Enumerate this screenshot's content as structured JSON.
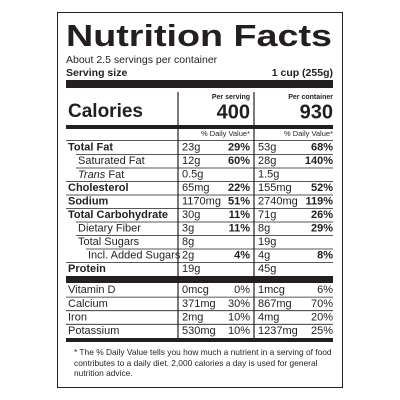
{
  "header": {
    "title": "Nutrition Facts",
    "servings": "About 2.5 servings per container",
    "serving_size_label": "Serving size",
    "serving_size": "1 cup (255g)"
  },
  "calories": {
    "label": "Calories",
    "per_serving_label": "Per serving",
    "per_serving": "400",
    "per_container_label": "Per container",
    "per_container": "930"
  },
  "dv_header": "% Daily Value*",
  "nutrients": [
    {
      "name": "Total Fat",
      "bold": true,
      "indent": 0,
      "serving": {
        "amount": "23g",
        "dv": "29%"
      },
      "container": {
        "amount": "53g",
        "dv": "68%"
      }
    },
    {
      "name": "Saturated Fat",
      "bold": false,
      "indent": 1,
      "serving": {
        "amount": "12g",
        "dv": "60%"
      },
      "container": {
        "amount": "28g",
        "dv": "140%"
      }
    },
    {
      "name_italic": "Trans",
      "name": "Fat",
      "bold": false,
      "indent": 1,
      "serving": {
        "amount": "0.5g"
      },
      "container": {
        "amount": "1.5g"
      }
    },
    {
      "name": "Cholesterol",
      "bold": true,
      "indent": 0,
      "serving": {
        "amount": "65mg",
        "dv": "22%"
      },
      "container": {
        "amount": "155mg",
        "dv": "52%"
      }
    },
    {
      "name": "Sodium",
      "bold": true,
      "indent": 0,
      "serving": {
        "amount": "1170mg",
        "dv": "51%"
      },
      "container": {
        "amount": "2740mg",
        "dv": "119%"
      }
    },
    {
      "name": "Total Carbohydrate",
      "bold": true,
      "indent": 0,
      "serving": {
        "amount": "30g",
        "dv": "11%"
      },
      "container": {
        "amount": "71g",
        "dv": "26%"
      }
    },
    {
      "name": "Dietary Fiber",
      "bold": false,
      "indent": 1,
      "serving": {
        "amount": "3g",
        "dv": "11%"
      },
      "container": {
        "amount": "8g",
        "dv": "29%"
      }
    },
    {
      "name": "Total Sugars",
      "bold": false,
      "indent": 1,
      "serving": {
        "amount": "8g"
      },
      "container": {
        "amount": "19g"
      }
    },
    {
      "name": "Incl. Added Sugars",
      "bold": false,
      "indent": 2,
      "serving": {
        "amount": "2g",
        "dv": "4%"
      },
      "container": {
        "amount": "4g",
        "dv": "8%"
      }
    },
    {
      "name": "Protein",
      "bold": true,
      "indent": 0,
      "serving": {
        "amount": "19g"
      },
      "container": {
        "amount": "45g"
      }
    }
  ],
  "vitamins": [
    {
      "name": "Vitamin D",
      "serving": {
        "amount": "0mcg",
        "dv": "0%"
      },
      "container": {
        "amount": "1mcg",
        "dv": "6%"
      }
    },
    {
      "name": "Calcium",
      "serving": {
        "amount": "371mg",
        "dv": "30%"
      },
      "container": {
        "amount": "867mg",
        "dv": "70%"
      }
    },
    {
      "name": "Iron",
      "serving": {
        "amount": "2mg",
        "dv": "10%"
      },
      "container": {
        "amount": "4mg",
        "dv": "20%"
      }
    },
    {
      "name": "Potassium",
      "serving": {
        "amount": "530mg",
        "dv": "10%"
      },
      "container": {
        "amount": "1237mg",
        "dv": "25%"
      }
    }
  ],
  "footnote": "* The % Daily Value tells you how much a nutrient in a serving of food contributes to a daily diet. 2,000 calories a day is used for general nutrition advice."
}
